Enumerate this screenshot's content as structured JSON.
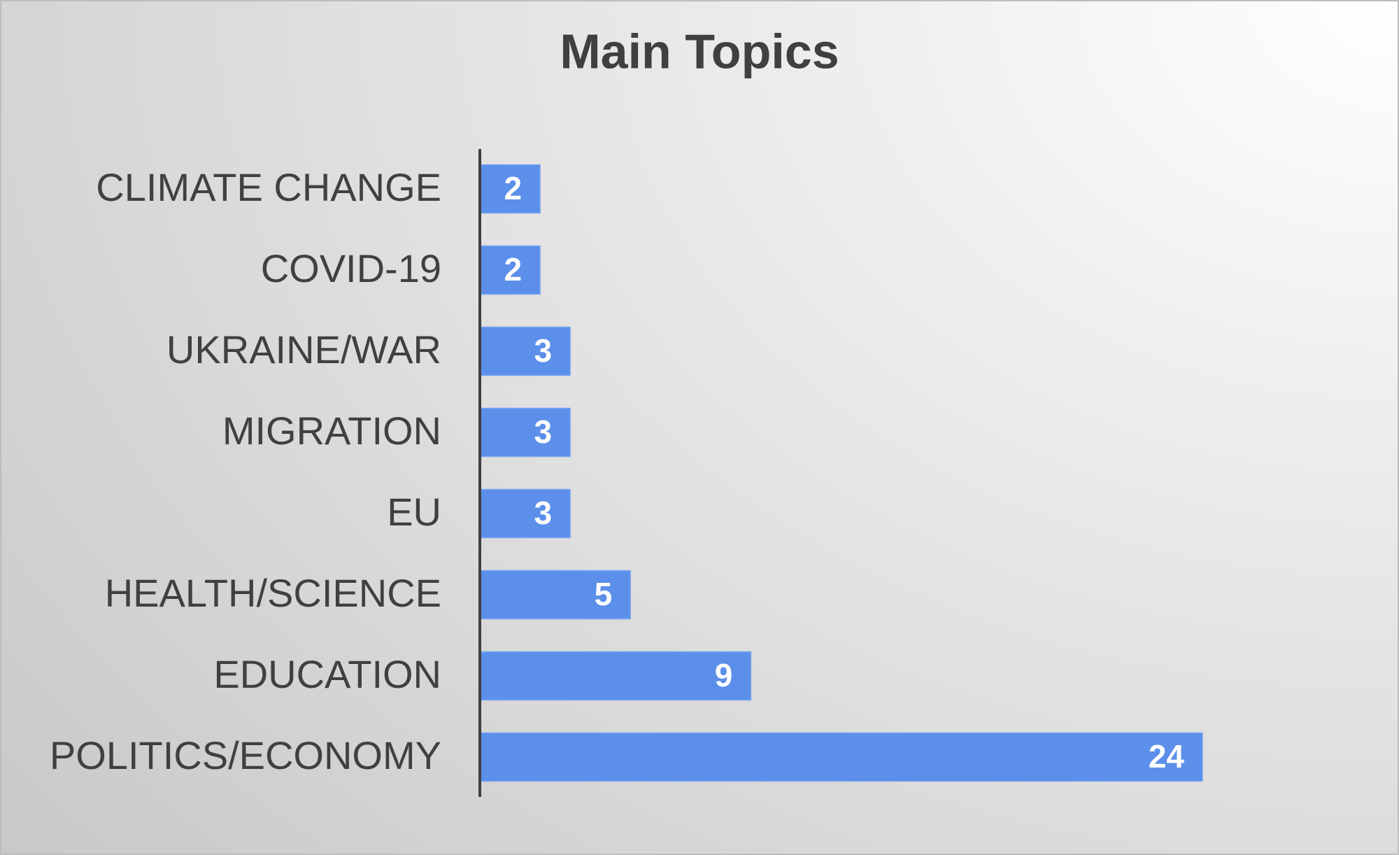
{
  "chart_data": {
    "type": "hbar",
    "title": "Main Topics",
    "categories": [
      "CLIMATE CHANGE",
      "COVID-19",
      "UKRAINE/WAR",
      "MIGRATION",
      "EU",
      "HEALTH/SCIENCE",
      "EDUCATION",
      "POLITICS/ECONOMY"
    ],
    "values": [
      2,
      2,
      3,
      3,
      3,
      5,
      9,
      24
    ],
    "color": "#5b8fea"
  }
}
